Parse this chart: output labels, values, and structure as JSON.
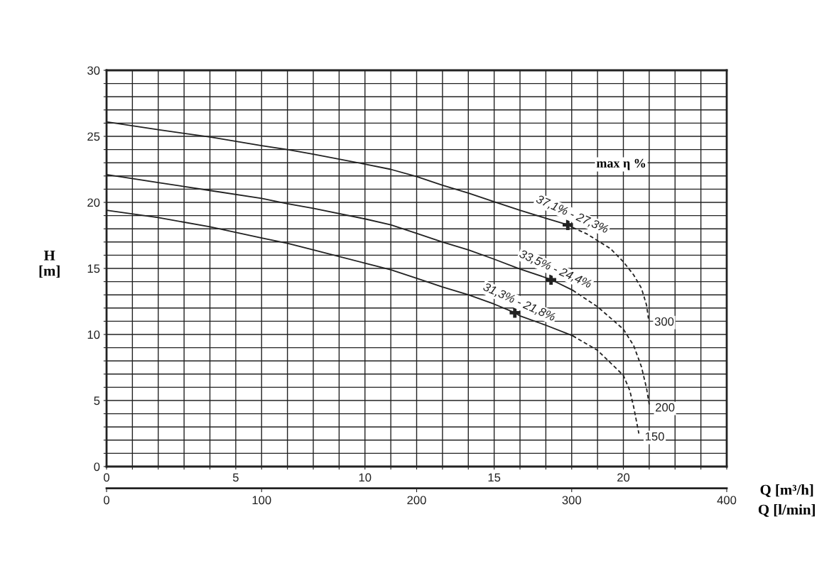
{
  "chart_data": {
    "type": "line",
    "title": "max η %",
    "xlabel": "Q [m³/h]",
    "x2label": "Q [l/min]",
    "ylabel": "H\n[m]",
    "xlim": [
      0,
      24
    ],
    "xticks": [
      0,
      {
        "value": 1,
        "label": null
      },
      {
        "value": 2,
        "label": null
      },
      {
        "value": 3,
        "label": null
      },
      {
        "value": 4,
        "label": null
      },
      5,
      {
        "value": 6,
        "label": null
      },
      {
        "value": 7,
        "label": null
      },
      {
        "value": 8,
        "label": null
      },
      {
        "value": 9,
        "label": null
      },
      10,
      {
        "value": 11,
        "label": null
      },
      {
        "value": 12,
        "label": null
      },
      {
        "value": 13,
        "label": null
      },
      {
        "value": 14,
        "label": null
      },
      15,
      {
        "value": 16,
        "label": null
      },
      {
        "value": 17,
        "label": null
      },
      {
        "value": 18,
        "label": null
      },
      {
        "value": 19,
        "label": null
      },
      20,
      {
        "value": 21,
        "label": null
      },
      {
        "value": 22,
        "label": null
      },
      {
        "value": 23,
        "label": null
      },
      {
        "value": 24,
        "label": null
      }
    ],
    "x2lim": [
      0,
      400
    ],
    "x2ticks": [
      0,
      100,
      200,
      300,
      400
    ],
    "ylim": [
      0,
      30
    ],
    "yticks": [
      0,
      {
        "value": 1,
        "label": null
      },
      {
        "value": 2,
        "label": null
      },
      {
        "value": 3,
        "label": null
      },
      {
        "value": 4,
        "label": null
      },
      5,
      {
        "value": 6,
        "label": null
      },
      {
        "value": 7,
        "label": null
      },
      {
        "value": 8,
        "label": null
      },
      {
        "value": 9,
        "label": null
      },
      10,
      {
        "value": 11,
        "label": null
      },
      {
        "value": 12,
        "label": null
      },
      {
        "value": 13,
        "label": null
      },
      {
        "value": 14,
        "label": null
      },
      15,
      {
        "value": 16,
        "label": null
      },
      {
        "value": 17,
        "label": null
      },
      {
        "value": 18,
        "label": null
      },
      {
        "value": 19,
        "label": null
      },
      20,
      {
        "value": 21,
        "label": null
      },
      {
        "value": 22,
        "label": null
      },
      {
        "value": 23,
        "label": null
      },
      {
        "value": 24,
        "label": null
      },
      25,
      {
        "value": 26,
        "label": null
      },
      {
        "value": 27,
        "label": null
      },
      {
        "value": 28,
        "label": null
      },
      {
        "value": 29,
        "label": null
      },
      30
    ],
    "grid": true,
    "legend": false,
    "series": [
      {
        "color": "#222222",
        "line_style": "solid",
        "x": [
          0,
          2,
          4,
          6,
          7,
          8,
          10,
          11,
          12,
          13,
          14,
          15,
          16,
          17,
          17.85,
          18.04
        ],
        "values": [
          26.1,
          25.5,
          24.95,
          24.3,
          24.0,
          23.65,
          22.9,
          22.5,
          21.95,
          21.3,
          20.7,
          20.05,
          19.4,
          18.8,
          18.3,
          18.1
        ]
      },
      {
        "name": "300",
        "color": "#222222",
        "line_style": "dashed",
        "x": [
          18.04,
          18.6,
          19,
          19.5,
          20,
          20.4,
          20.7,
          20.9,
          20.97
        ],
        "values": [
          18.1,
          17.6,
          17.1,
          16.5,
          15.5,
          14.5,
          13.5,
          12.2,
          11.2
        ]
      },
      {
        "color": "#222222",
        "line_style": "solid",
        "x": [
          0,
          2,
          4,
          6,
          7,
          8,
          10,
          11,
          12,
          13,
          14,
          15,
          16,
          17,
          17.2,
          18.04
        ],
        "values": [
          22.1,
          21.5,
          20.9,
          20.3,
          19.9,
          19.55,
          18.75,
          18.3,
          17.65,
          17.0,
          16.4,
          15.7,
          14.95,
          14.3,
          14.15,
          13.35
        ]
      },
      {
        "name": "200",
        "color": "#222222",
        "line_style": "dashed",
        "x": [
          18.04,
          19,
          20,
          20.4,
          20.7,
          20.9,
          21.0
        ],
        "values": [
          13.35,
          12.1,
          10.4,
          9.15,
          7.55,
          5.9,
          4.7
        ]
      },
      {
        "color": "#222222",
        "line_style": "solid",
        "x": [
          0,
          2,
          4,
          6,
          7,
          8,
          10,
          11,
          12,
          13,
          14,
          15,
          15.8,
          16,
          17,
          18.04
        ],
        "values": [
          19.4,
          18.85,
          18.15,
          17.3,
          16.9,
          16.4,
          15.4,
          14.9,
          14.25,
          13.6,
          13.0,
          12.3,
          11.65,
          11.4,
          10.7,
          9.9
        ]
      },
      {
        "name": "150",
        "color": "#222222",
        "line_style": "dashed",
        "x": [
          18.04,
          19,
          20,
          20.25,
          20.4,
          20.6
        ],
        "values": [
          9.9,
          8.8,
          6.9,
          5.75,
          4.5,
          2.5
        ]
      },
      {
        "type": "scatter",
        "marker": "cross",
        "color": "#222222",
        "x": [
          17.85,
          17.2,
          15.8
        ],
        "values": [
          18.3,
          14.15,
          11.65
        ]
      }
    ],
    "annotations": [
      {
        "text": "37,1% - 27,3%",
        "x": 17.85,
        "y": 18.3
      },
      {
        "text": "33,5% - 24,4%",
        "x": 17.2,
        "y": 14.15
      },
      {
        "text": "31,3% - 21,8%",
        "x": 15.8,
        "y": 11.65
      }
    ]
  }
}
